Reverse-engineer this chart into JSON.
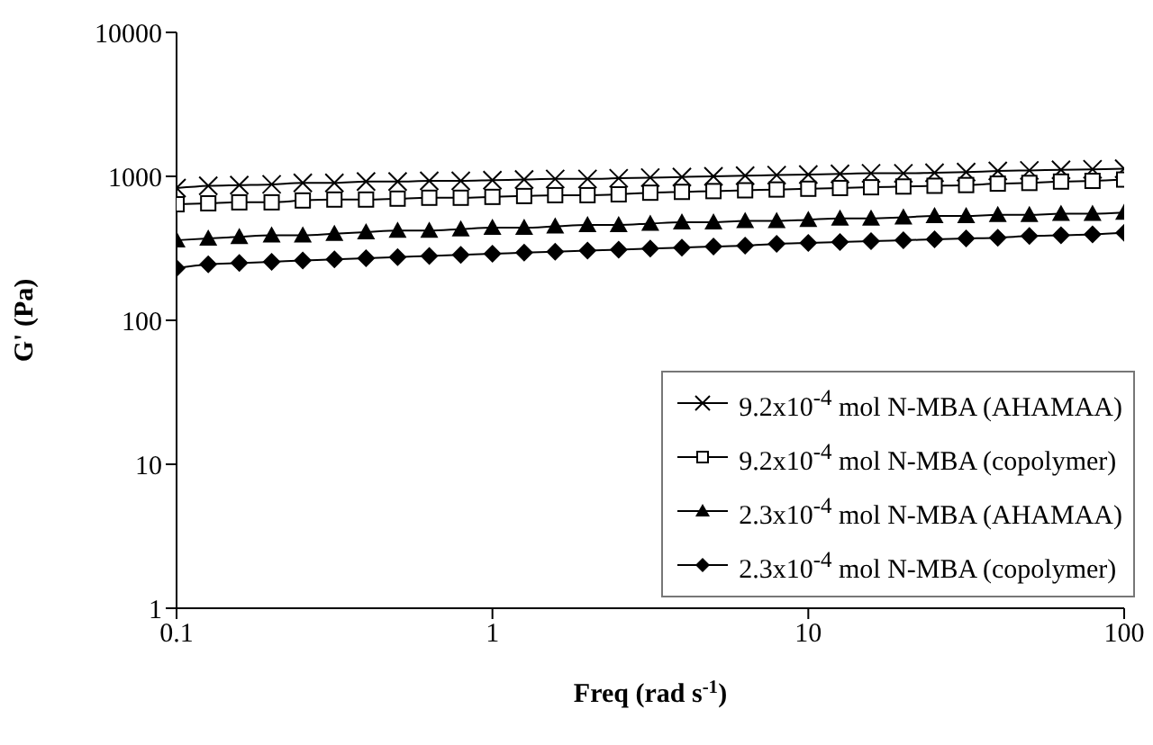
{
  "chart_data": {
    "type": "line",
    "xlabel": "Freq (rad s$^{-1}$)",
    "ylabel": "G' (Pa)",
    "log": "xy",
    "grid": false,
    "legend": "right",
    "xlim": [
      0.1,
      100
    ],
    "xticks": [
      0.1,
      1,
      10,
      100
    ],
    "ylim": [
      1,
      10000
    ],
    "yticks": [
      1,
      10,
      100,
      1000,
      10000
    ],
    "line_style": "solid",
    "x": [
      0.1,
      0.126,
      0.158,
      0.2,
      0.251,
      0.316,
      0.398,
      0.501,
      0.631,
      0.794,
      1,
      1.26,
      1.58,
      2,
      2.51,
      3.16,
      3.98,
      5.01,
      6.31,
      7.94,
      10,
      12.6,
      15.8,
      20,
      25.1,
      31.6,
      39.8,
      50.1,
      63.1,
      79.4,
      100
    ],
    "series": [
      {
        "name": "9.2x10$^{-4}$ mol N-MBA (AHAMAA)",
        "color": "#000000",
        "marker": "cross",
        "values": [
          830,
          860,
          870,
          880,
          900,
          900,
          920,
          920,
          930,
          930,
          940,
          950,
          960,
          960,
          970,
          980,
          990,
          1000,
          1010,
          1020,
          1030,
          1040,
          1050,
          1050,
          1060,
          1070,
          1090,
          1100,
          1110,
          1120,
          1130
        ]
      },
      {
        "name": "9.2x10$^{-4}$ mol N-MBA (copolymer)",
        "color": "#000000",
        "marker": "square",
        "values": [
          640,
          650,
          660,
          660,
          680,
          690,
          690,
          700,
          710,
          710,
          720,
          730,
          740,
          740,
          750,
          770,
          780,
          790,
          800,
          810,
          820,
          830,
          840,
          850,
          860,
          870,
          890,
          900,
          920,
          930,
          950
        ]
      },
      {
        "name": "2.3x10$^{-4}$ mol N-MBA (AHAMAA)",
        "color": "#000000",
        "marker": "triangle",
        "values": [
          360,
          370,
          380,
          390,
          390,
          400,
          410,
          420,
          420,
          430,
          440,
          440,
          450,
          460,
          460,
          470,
          480,
          480,
          490,
          490,
          500,
          510,
          510,
          520,
          530,
          530,
          540,
          540,
          550,
          550,
          560
        ]
      },
      {
        "name": "2.3x10$^{-4}$ mol N-MBA (copolymer)",
        "color": "#000000",
        "marker": "diamond",
        "values": [
          230,
          245,
          250,
          255,
          260,
          265,
          270,
          275,
          280,
          285,
          290,
          295,
          300,
          305,
          310,
          315,
          320,
          325,
          330,
          340,
          345,
          350,
          355,
          360,
          365,
          370,
          375,
          385,
          390,
          395,
          405
        ]
      }
    ]
  }
}
